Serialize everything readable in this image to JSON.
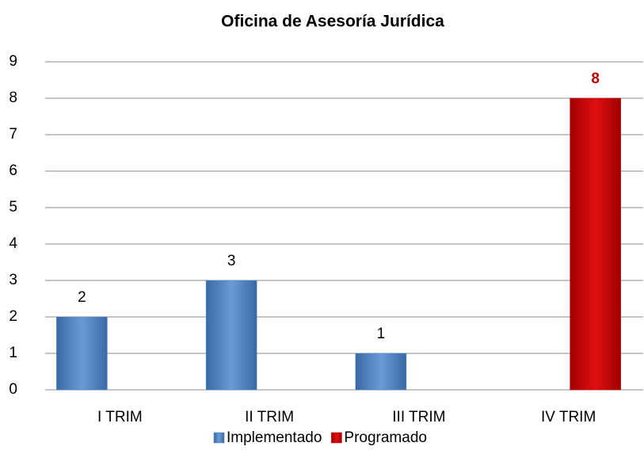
{
  "chart_data": {
    "type": "bar",
    "title": "Oficina de Asesoría Jurídica",
    "categories": [
      "I TRIM",
      "II TRIM",
      "III TRIM",
      "IV TRIM"
    ],
    "series": [
      {
        "name": "Implementado",
        "color": "#4f81bd",
        "values": [
          2,
          3,
          1,
          null
        ]
      },
      {
        "name": "Programado",
        "color": "#c00000",
        "values": [
          null,
          null,
          null,
          8
        ]
      }
    ],
    "ylim": [
      0,
      9
    ],
    "yticks": [
      0,
      1,
      2,
      3,
      4,
      5,
      6,
      7,
      8,
      9
    ],
    "grid": true,
    "legend": "bottom"
  }
}
